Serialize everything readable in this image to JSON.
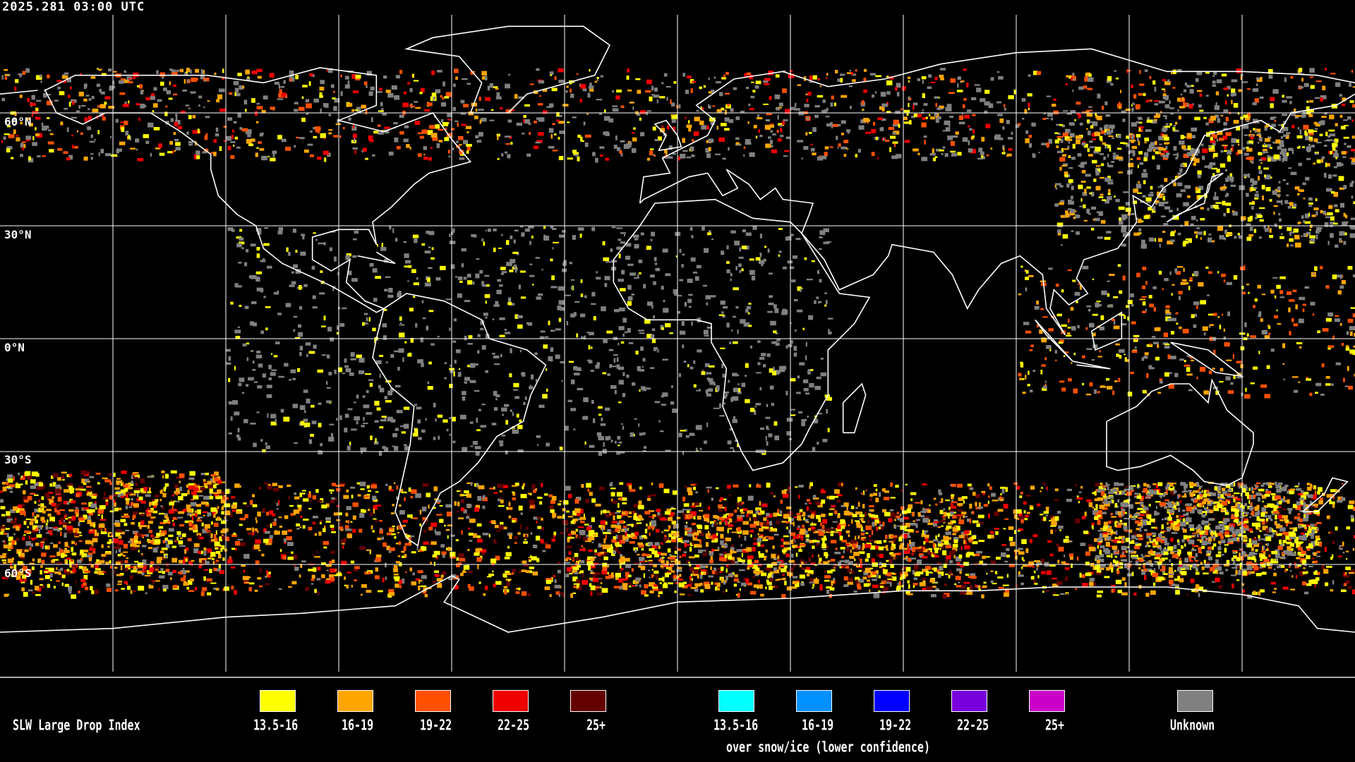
{
  "timestamp": "2025.281 03:00 UTC",
  "grid": {
    "latitude_labels": [
      "60°N",
      "30°N",
      "0°N",
      "30°S",
      "60°S"
    ],
    "grid_spacing_degrees": 30,
    "projection": "equirectangular"
  },
  "legend": {
    "title": "SLW Large Drop Index",
    "primary": [
      {
        "label": "13.5-16",
        "color": "#ffff00"
      },
      {
        "label": "16-19",
        "color": "#ffa500"
      },
      {
        "label": "19-22",
        "color": "#ff5000"
      },
      {
        "label": "22-25",
        "color": "#ee0000"
      },
      {
        "label": "25+",
        "color": "#640000"
      }
    ],
    "snow_ice": [
      {
        "label": "13.5-16",
        "color": "#00ffff"
      },
      {
        "label": "16-19",
        "color": "#0090ff"
      },
      {
        "label": "19-22",
        "color": "#0000ff"
      },
      {
        "label": "22-25",
        "color": "#7800dc"
      },
      {
        "label": "25+",
        "color": "#c800c8"
      }
    ],
    "snow_ice_caption": "over snow/ice (lower confidence)",
    "unknown": {
      "label": "Unknown",
      "color": "#808080"
    }
  }
}
